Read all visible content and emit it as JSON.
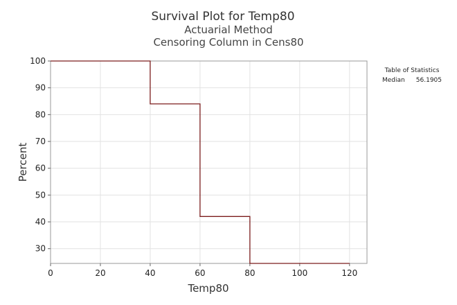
{
  "chart_data": {
    "type": "line",
    "title": "Survival Plot for Temp80",
    "subtitles": [
      "Actuarial Method",
      "Censoring Column in Cens80"
    ],
    "xlabel": "Temp80",
    "ylabel": "Percent",
    "xlim": [
      0,
      127
    ],
    "ylim": [
      24.5,
      100
    ],
    "xticks": [
      0,
      20,
      40,
      60,
      80,
      100,
      120
    ],
    "yticks": [
      30,
      40,
      50,
      60,
      70,
      80,
      90,
      100
    ],
    "grid": true,
    "step": true,
    "series": [
      {
        "x": [
          0,
          40,
          40,
          60,
          60,
          80,
          80,
          120
        ],
        "y": [
          100,
          100,
          84,
          84,
          42,
          42,
          24.5,
          24.5
        ],
        "color": "#7b1c1c"
      }
    ],
    "stats_table": {
      "title": "Table of Statistics",
      "rows": [
        {
          "label": "Median",
          "value": "56.1905"
        }
      ]
    }
  }
}
